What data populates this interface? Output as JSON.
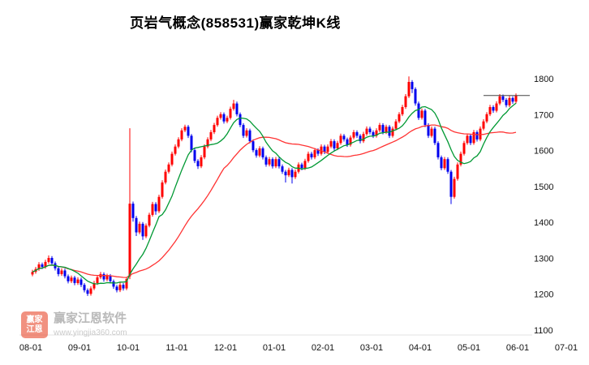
{
  "title": "页岩气概念(858531)赢家乾坤K线",
  "watermark": {
    "logo_line1": "赢家",
    "logo_line2": "江恩",
    "name": "赢家江恩软件",
    "url": "www.yingjia360.com"
  },
  "chart_data": {
    "type": "candlestick",
    "title": "页岩气概念(858531)赢家乾坤K线",
    "x_ticks": [
      "08-01",
      "09-01",
      "10-01",
      "11-01",
      "12-01",
      "01-01",
      "02-01",
      "03-01",
      "04-01",
      "05-01",
      "06-01",
      "07-01"
    ],
    "y_ticks": [
      1800,
      1700,
      1600,
      1500,
      1400,
      1300,
      1200,
      1100
    ],
    "ylim": [
      1100,
      1810
    ],
    "has_grid": false,
    "legend_position": "none",
    "ma_short_window": 10,
    "ma_long_window": 30,
    "last_close": 1753,
    "colors": {
      "up": "#ff0000",
      "down": "#0000ee",
      "ma_short": "#009933",
      "ma_long": "#ff3333",
      "axis_text": "#111111",
      "last_close_line": "#444444"
    },
    "candles": [
      [
        1255,
        1268,
        1250,
        1262
      ],
      [
        1262,
        1276,
        1257,
        1270
      ],
      [
        1270,
        1289,
        1265,
        1283
      ],
      [
        1283,
        1288,
        1270,
        1276
      ],
      [
        1276,
        1296,
        1271,
        1290
      ],
      [
        1290,
        1308,
        1285,
        1301
      ],
      [
        1301,
        1306,
        1281,
        1286
      ],
      [
        1286,
        1291,
        1266,
        1272
      ],
      [
        1272,
        1277,
        1250,
        1256
      ],
      [
        1256,
        1272,
        1251,
        1266
      ],
      [
        1266,
        1271,
        1244,
        1250
      ],
      [
        1250,
        1255,
        1230,
        1236
      ],
      [
        1236,
        1252,
        1231,
        1246
      ],
      [
        1246,
        1251,
        1225,
        1231
      ],
      [
        1231,
        1247,
        1226,
        1241
      ],
      [
        1241,
        1246,
        1220,
        1226
      ],
      [
        1226,
        1231,
        1205,
        1211
      ],
      [
        1211,
        1216,
        1195,
        1201
      ],
      [
        1201,
        1222,
        1196,
        1216
      ],
      [
        1216,
        1237,
        1211,
        1231
      ],
      [
        1231,
        1253,
        1226,
        1247
      ],
      [
        1247,
        1262,
        1242,
        1256
      ],
      [
        1256,
        1261,
        1235,
        1241
      ],
      [
        1241,
        1257,
        1236,
        1251
      ],
      [
        1251,
        1256,
        1230,
        1236
      ],
      [
        1236,
        1241,
        1215,
        1221
      ],
      [
        1221,
        1226,
        1205,
        1211
      ],
      [
        1211,
        1232,
        1206,
        1226
      ],
      [
        1226,
        1231,
        1210,
        1216
      ],
      [
        1216,
        1248,
        1211,
        1242
      ],
      [
        1250,
        1662,
        1242,
        1452
      ],
      [
        1452,
        1458,
        1402,
        1412
      ],
      [
        1412,
        1418,
        1362,
        1372
      ],
      [
        1372,
        1402,
        1367,
        1396
      ],
      [
        1396,
        1401,
        1351,
        1361
      ],
      [
        1361,
        1397,
        1356,
        1391
      ],
      [
        1391,
        1427,
        1386,
        1421
      ],
      [
        1421,
        1457,
        1416,
        1451
      ],
      [
        1451,
        1456,
        1421,
        1431
      ],
      [
        1431,
        1477,
        1426,
        1471
      ],
      [
        1471,
        1517,
        1466,
        1511
      ],
      [
        1511,
        1547,
        1506,
        1541
      ],
      [
        1541,
        1567,
        1536,
        1561
      ],
      [
        1561,
        1597,
        1556,
        1591
      ],
      [
        1591,
        1617,
        1586,
        1611
      ],
      [
        1611,
        1637,
        1606,
        1631
      ],
      [
        1631,
        1662,
        1626,
        1656
      ],
      [
        1656,
        1672,
        1651,
        1666
      ],
      [
        1666,
        1671,
        1635,
        1641
      ],
      [
        1641,
        1646,
        1595,
        1601
      ],
      [
        1601,
        1606,
        1565,
        1571
      ],
      [
        1571,
        1576,
        1549,
        1556
      ],
      [
        1556,
        1587,
        1551,
        1581
      ],
      [
        1581,
        1617,
        1576,
        1611
      ],
      [
        1611,
        1637,
        1606,
        1631
      ],
      [
        1631,
        1657,
        1626,
        1651
      ],
      [
        1651,
        1677,
        1646,
        1671
      ],
      [
        1671,
        1697,
        1666,
        1691
      ],
      [
        1691,
        1707,
        1686,
        1701
      ],
      [
        1701,
        1706,
        1675,
        1681
      ],
      [
        1681,
        1697,
        1676,
        1691
      ],
      [
        1691,
        1722,
        1686,
        1716
      ],
      [
        1716,
        1741,
        1711,
        1731
      ],
      [
        1731,
        1736,
        1695,
        1701
      ],
      [
        1701,
        1706,
        1665,
        1671
      ],
      [
        1671,
        1676,
        1635,
        1641
      ],
      [
        1641,
        1662,
        1636,
        1656
      ],
      [
        1656,
        1661,
        1620,
        1626
      ],
      [
        1626,
        1631,
        1595,
        1601
      ],
      [
        1601,
        1606,
        1580,
        1586
      ],
      [
        1586,
        1612,
        1581,
        1606
      ],
      [
        1606,
        1611,
        1575,
        1581
      ],
      [
        1581,
        1586,
        1555,
        1561
      ],
      [
        1561,
        1582,
        1556,
        1576
      ],
      [
        1576,
        1581,
        1550,
        1556
      ],
      [
        1556,
        1582,
        1551,
        1576
      ],
      [
        1576,
        1581,
        1550,
        1556
      ],
      [
        1556,
        1561,
        1535,
        1541
      ],
      [
        1541,
        1546,
        1511,
        1531
      ],
      [
        1531,
        1552,
        1526,
        1546
      ],
      [
        1546,
        1551,
        1508,
        1526
      ],
      [
        1526,
        1547,
        1521,
        1541
      ],
      [
        1541,
        1567,
        1536,
        1561
      ],
      [
        1561,
        1566,
        1545,
        1551
      ],
      [
        1551,
        1577,
        1546,
        1571
      ],
      [
        1571,
        1597,
        1566,
        1591
      ],
      [
        1591,
        1596,
        1575,
        1581
      ],
      [
        1581,
        1607,
        1576,
        1601
      ],
      [
        1601,
        1606,
        1585,
        1591
      ],
      [
        1591,
        1617,
        1586,
        1611
      ],
      [
        1611,
        1616,
        1590,
        1596
      ],
      [
        1596,
        1617,
        1591,
        1611
      ],
      [
        1611,
        1632,
        1606,
        1626
      ],
      [
        1626,
        1631,
        1600,
        1606
      ],
      [
        1606,
        1627,
        1601,
        1621
      ],
      [
        1621,
        1647,
        1616,
        1641
      ],
      [
        1641,
        1646,
        1625,
        1631
      ],
      [
        1631,
        1636,
        1610,
        1616
      ],
      [
        1616,
        1642,
        1611,
        1636
      ],
      [
        1636,
        1657,
        1631,
        1651
      ],
      [
        1651,
        1656,
        1635,
        1641
      ],
      [
        1641,
        1646,
        1620,
        1626
      ],
      [
        1626,
        1652,
        1621,
        1646
      ],
      [
        1646,
        1667,
        1641,
        1661
      ],
      [
        1661,
        1666,
        1645,
        1651
      ],
      [
        1651,
        1656,
        1635,
        1641
      ],
      [
        1641,
        1662,
        1636,
        1656
      ],
      [
        1656,
        1677,
        1651,
        1671
      ],
      [
        1671,
        1676,
        1645,
        1651
      ],
      [
        1651,
        1672,
        1646,
        1666
      ],
      [
        1666,
        1671,
        1635,
        1641
      ],
      [
        1641,
        1667,
        1636,
        1661
      ],
      [
        1661,
        1687,
        1656,
        1681
      ],
      [
        1681,
        1707,
        1676,
        1701
      ],
      [
        1701,
        1727,
        1696,
        1721
      ],
      [
        1721,
        1757,
        1716,
        1751
      ],
      [
        1751,
        1806,
        1746,
        1791
      ],
      [
        1791,
        1796,
        1760,
        1771
      ],
      [
        1771,
        1776,
        1725,
        1731
      ],
      [
        1731,
        1736,
        1685,
        1691
      ],
      [
        1691,
        1717,
        1686,
        1711
      ],
      [
        1711,
        1716,
        1665,
        1671
      ],
      [
        1671,
        1676,
        1635,
        1641
      ],
      [
        1641,
        1667,
        1636,
        1661
      ],
      [
        1661,
        1666,
        1615,
        1621
      ],
      [
        1621,
        1626,
        1575,
        1581
      ],
      [
        1581,
        1586,
        1545,
        1551
      ],
      [
        1551,
        1582,
        1546,
        1576
      ],
      [
        1576,
        1581,
        1535,
        1541
      ],
      [
        1541,
        1546,
        1451,
        1471
      ],
      [
        1471,
        1527,
        1466,
        1521
      ],
      [
        1521,
        1567,
        1516,
        1561
      ],
      [
        1561,
        1597,
        1556,
        1591
      ],
      [
        1591,
        1627,
        1586,
        1621
      ],
      [
        1621,
        1647,
        1616,
        1641
      ],
      [
        1641,
        1646,
        1615,
        1621
      ],
      [
        1621,
        1657,
        1616,
        1651
      ],
      [
        1651,
        1656,
        1625,
        1631
      ],
      [
        1631,
        1667,
        1626,
        1661
      ],
      [
        1661,
        1687,
        1656,
        1681
      ],
      [
        1681,
        1707,
        1676,
        1701
      ],
      [
        1701,
        1727,
        1696,
        1721
      ],
      [
        1721,
        1726,
        1705,
        1711
      ],
      [
        1711,
        1737,
        1706,
        1731
      ],
      [
        1731,
        1757,
        1726,
        1751
      ],
      [
        1751,
        1756,
        1735,
        1741
      ],
      [
        1741,
        1746,
        1720,
        1726
      ],
      [
        1726,
        1752,
        1721,
        1746
      ],
      [
        1746,
        1751,
        1730,
        1736
      ],
      [
        1736,
        1759,
        1731,
        1753
      ]
    ]
  }
}
